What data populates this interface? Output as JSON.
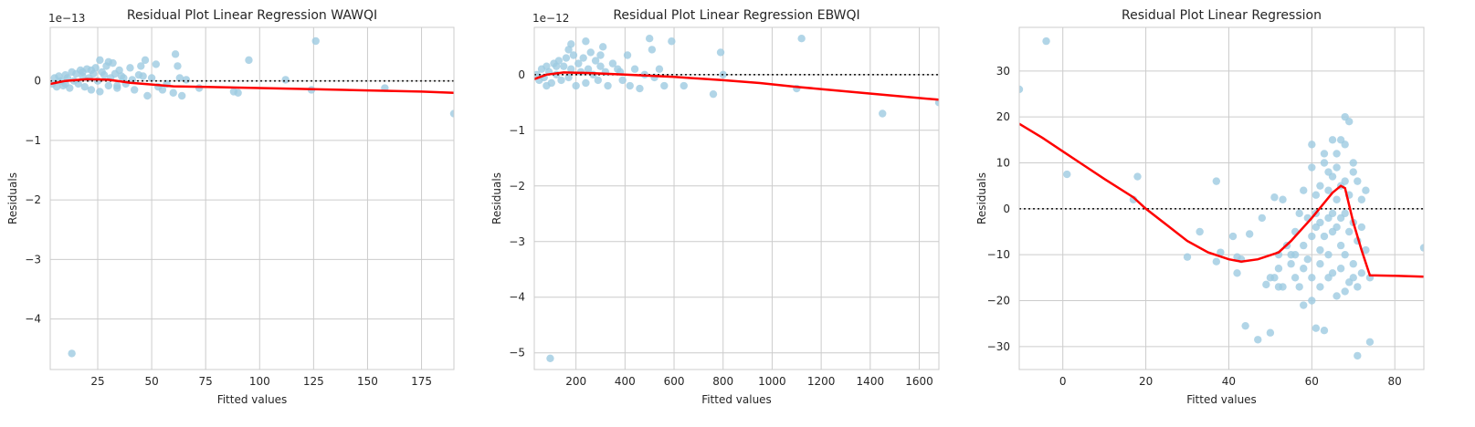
{
  "chart_data": [
    {
      "type": "scatter",
      "title": "Residual Plot Linear Regression WAWQI",
      "xlabel": "Fitted values",
      "ylabel": "Residuals",
      "offset_label": "1e−13",
      "xlim": [
        3,
        190
      ],
      "ylim": [
        -4.85,
        0.9
      ],
      "xticks": [
        25,
        50,
        75,
        100,
        125,
        150,
        175
      ],
      "yticks": [
        0,
        -1,
        -2,
        -3,
        -4
      ],
      "grid": true,
      "points": [
        [
          4,
          -0.05
        ],
        [
          5,
          0.05
        ],
        [
          6,
          -0.1
        ],
        [
          7,
          0.08
        ],
        [
          8,
          0.0
        ],
        [
          9,
          -0.08
        ],
        [
          10,
          0.1
        ],
        [
          11,
          0.05
        ],
        [
          12,
          -0.12
        ],
        [
          13,
          0.15
        ],
        [
          14,
          0.0
        ],
        [
          15,
          0.12
        ],
        [
          16,
          -0.05
        ],
        [
          17,
          0.18
        ],
        [
          18,
          0.08
        ],
        [
          19,
          -0.1
        ],
        [
          20,
          0.2
        ],
        [
          21,
          0.05
        ],
        [
          22,
          -0.15
        ],
        [
          23,
          0.12
        ],
        [
          24,
          0.22
        ],
        [
          25,
          0.0
        ],
        [
          26,
          -0.18
        ],
        [
          27,
          0.15
        ],
        [
          28,
          0.1
        ],
        [
          29,
          0.25
        ],
        [
          30,
          -0.08
        ],
        [
          31,
          0.05
        ],
        [
          32,
          0.3
        ],
        [
          33,
          0.12
        ],
        [
          34,
          -0.12
        ],
        [
          35,
          0.18
        ],
        [
          36,
          0.08
        ],
        [
          37,
          0.05
        ],
        [
          38,
          -0.05
        ],
        [
          40,
          0.22
        ],
        [
          41,
          0.02
        ],
        [
          42,
          -0.15
        ],
        [
          44,
          0.1
        ],
        [
          45,
          0.25
        ],
        [
          46,
          0.08
        ],
        [
          47,
          0.35
        ],
        [
          48,
          -0.25
        ],
        [
          50,
          0.05
        ],
        [
          52,
          0.28
        ],
        [
          53,
          -0.1
        ],
        [
          55,
          -0.15
        ],
        [
          57,
          -0.05
        ],
        [
          60,
          -0.2
        ],
        [
          61,
          0.45
        ],
        [
          62,
          0.25
        ],
        [
          63,
          0.05
        ],
        [
          64,
          -0.25
        ],
        [
          66,
          0.02
        ],
        [
          72,
          -0.12
        ],
        [
          88,
          -0.18
        ],
        [
          90,
          -0.2
        ],
        [
          95,
          0.35
        ],
        [
          112,
          0.02
        ],
        [
          124,
          -0.15
        ],
        [
          126,
          0.67
        ],
        [
          158,
          -0.12
        ],
        [
          190,
          -0.55
        ],
        [
          13,
          -4.58
        ],
        [
          26,
          0.35
        ],
        [
          30,
          0.32
        ],
        [
          22,
          0.18
        ],
        [
          18,
          0.15
        ],
        [
          10,
          -0.05
        ],
        [
          34,
          -0.08
        ]
      ],
      "fit": [
        [
          3,
          -0.05
        ],
        [
          10,
          0.0
        ],
        [
          20,
          0.03
        ],
        [
          30,
          0.02
        ],
        [
          40,
          -0.03
        ],
        [
          50,
          -0.06
        ],
        [
          60,
          -0.09
        ],
        [
          75,
          -0.1
        ],
        [
          100,
          -0.12
        ],
        [
          125,
          -0.14
        ],
        [
          150,
          -0.16
        ],
        [
          175,
          -0.18
        ],
        [
          190,
          -0.2
        ]
      ]
    },
    {
      "type": "scatter",
      "title": "Residual Plot Linear Regression EBWQI",
      "xlabel": "Fitted values",
      "ylabel": "Residuals",
      "offset_label": "1e−12",
      "xlim": [
        30,
        1680
      ],
      "ylim": [
        -5.3,
        0.85
      ],
      "xticks": [
        200,
        400,
        600,
        800,
        1000,
        1200,
        1400,
        1600
      ],
      "yticks": [
        0,
        -1,
        -2,
        -3,
        -4,
        -5
      ],
      "grid": true,
      "points": [
        [
          40,
          0.0
        ],
        [
          50,
          -0.1
        ],
        [
          60,
          0.1
        ],
        [
          70,
          -0.05
        ],
        [
          80,
          0.15
        ],
        [
          90,
          0.05
        ],
        [
          100,
          -0.15
        ],
        [
          110,
          0.2
        ],
        [
          120,
          0.0
        ],
        [
          130,
          0.25
        ],
        [
          140,
          -0.1
        ],
        [
          150,
          0.15
        ],
        [
          160,
          0.3
        ],
        [
          170,
          -0.05
        ],
        [
          180,
          0.1
        ],
        [
          190,
          0.35
        ],
        [
          200,
          -0.2
        ],
        [
          210,
          0.2
        ],
        [
          220,
          0.05
        ],
        [
          230,
          0.3
        ],
        [
          240,
          -0.15
        ],
        [
          250,
          0.1
        ],
        [
          260,
          0.4
        ],
        [
          270,
          0.0
        ],
        [
          280,
          0.25
        ],
        [
          290,
          -0.1
        ],
        [
          300,
          0.15
        ],
        [
          310,
          0.5
        ],
        [
          320,
          0.05
        ],
        [
          330,
          -0.2
        ],
        [
          350,
          0.2
        ],
        [
          370,
          0.1
        ],
        [
          390,
          -0.1
        ],
        [
          410,
          0.35
        ],
        [
          420,
          -0.2
        ],
        [
          440,
          0.1
        ],
        [
          460,
          -0.25
        ],
        [
          480,
          0.0
        ],
        [
          500,
          0.65
        ],
        [
          510,
          0.45
        ],
        [
          520,
          -0.05
        ],
        [
          540,
          0.1
        ],
        [
          560,
          -0.2
        ],
        [
          590,
          0.6
        ],
        [
          640,
          -0.2
        ],
        [
          760,
          -0.35
        ],
        [
          790,
          0.4
        ],
        [
          800,
          0.0
        ],
        [
          1100,
          -0.25
        ],
        [
          1120,
          0.65
        ],
        [
          1450,
          -0.7
        ],
        [
          1680,
          -0.5
        ],
        [
          95,
          -5.1
        ],
        [
          180,
          0.55
        ],
        [
          240,
          0.6
        ],
        [
          170,
          0.45
        ],
        [
          300,
          0.35
        ],
        [
          120,
          0.15
        ],
        [
          80,
          -0.2
        ],
        [
          380,
          0.05
        ]
      ],
      "fit": [
        [
          30,
          -0.08
        ],
        [
          80,
          0.0
        ],
        [
          150,
          0.04
        ],
        [
          250,
          0.03
        ],
        [
          400,
          0.0
        ],
        [
          600,
          -0.04
        ],
        [
          800,
          -0.1
        ],
        [
          950,
          -0.15
        ],
        [
          1100,
          -0.22
        ],
        [
          1300,
          -0.3
        ],
        [
          1500,
          -0.38
        ],
        [
          1680,
          -0.45
        ]
      ]
    },
    {
      "type": "scatter",
      "title": "Residual Plot Linear Regression",
      "xlabel": "Fitted values",
      "ylabel": "Residuals",
      "offset_label": "",
      "xlim": [
        -10.5,
        87
      ],
      "ylim": [
        -35,
        39.5
      ],
      "xticks": [
        0,
        20,
        40,
        60,
        80
      ],
      "yticks": [
        30,
        20,
        10,
        0,
        -10,
        -20,
        -30
      ],
      "grid": true,
      "points": [
        [
          -10.5,
          26
        ],
        [
          -4,
          36.5
        ],
        [
          1,
          7.5
        ],
        [
          17,
          2
        ],
        [
          18,
          7
        ],
        [
          30,
          -10.5
        ],
        [
          33,
          -5
        ],
        [
          37,
          6
        ],
        [
          37,
          -11.5
        ],
        [
          38,
          -9.5
        ],
        [
          41,
          -6
        ],
        [
          42,
          -10.5
        ],
        [
          42,
          -14
        ],
        [
          43,
          -11
        ],
        [
          44,
          -25.5
        ],
        [
          45,
          -5.5
        ],
        [
          47,
          -28.5
        ],
        [
          48,
          -2
        ],
        [
          49,
          -16.5
        ],
        [
          50,
          -15
        ],
        [
          50,
          -27
        ],
        [
          51,
          -15
        ],
        [
          51,
          2.5
        ],
        [
          52,
          -13
        ],
        [
          52,
          -17
        ],
        [
          52,
          -10
        ],
        [
          53,
          -17
        ],
        [
          53,
          2
        ],
        [
          54,
          -8
        ],
        [
          55,
          -10
        ],
        [
          55,
          -12
        ],
        [
          56,
          -15
        ],
        [
          56,
          -5
        ],
        [
          57,
          -1
        ],
        [
          57,
          -17
        ],
        [
          58,
          4
        ],
        [
          58,
          -8
        ],
        [
          58,
          -13
        ],
        [
          59,
          -2
        ],
        [
          59,
          -11
        ],
        [
          60,
          -6
        ],
        [
          60,
          9
        ],
        [
          60,
          14
        ],
        [
          60,
          -15
        ],
        [
          61,
          3
        ],
        [
          61,
          -1
        ],
        [
          61,
          -4
        ],
        [
          61,
          -26
        ],
        [
          62,
          5
        ],
        [
          62,
          -9
        ],
        [
          62,
          -12
        ],
        [
          62,
          -17
        ],
        [
          63,
          10
        ],
        [
          63,
          -6
        ],
        [
          63,
          -26.5
        ],
        [
          64,
          4
        ],
        [
          64,
          -2
        ],
        [
          64,
          -10
        ],
        [
          64,
          -15
        ],
        [
          65,
          7
        ],
        [
          65,
          15
        ],
        [
          65,
          -1
        ],
        [
          65,
          -5
        ],
        [
          65,
          -14
        ],
        [
          66,
          9
        ],
        [
          66,
          -4
        ],
        [
          66,
          12
        ],
        [
          66,
          -19
        ],
        [
          67,
          5
        ],
        [
          67,
          -2
        ],
        [
          67,
          -8
        ],
        [
          67,
          -13
        ],
        [
          68,
          20
        ],
        [
          68,
          14
        ],
        [
          68,
          -1
        ],
        [
          68,
          6
        ],
        [
          68,
          -10
        ],
        [
          69,
          3
        ],
        [
          69,
          -5
        ],
        [
          69,
          -16
        ],
        [
          69,
          19
        ],
        [
          70,
          8
        ],
        [
          70,
          -3
        ],
        [
          70,
          10
        ],
        [
          70,
          -12
        ],
        [
          71,
          6
        ],
        [
          71,
          -7
        ],
        [
          71,
          -17
        ],
        [
          71,
          -32
        ],
        [
          72,
          2
        ],
        [
          72,
          -4
        ],
        [
          72,
          -14
        ],
        [
          73,
          4
        ],
        [
          73,
          -9
        ],
        [
          74,
          -15
        ],
        [
          74,
          -29
        ],
        [
          63,
          12
        ],
        [
          66,
          2
        ],
        [
          68,
          -18
        ],
        [
          64,
          8
        ],
        [
          62,
          -3
        ],
        [
          60,
          -20
        ],
        [
          67,
          15
        ],
        [
          70,
          -15
        ],
        [
          58,
          -21
        ],
        [
          56,
          -10
        ],
        [
          87,
          -8.5
        ]
      ],
      "fit": [
        [
          -10.5,
          18.5
        ],
        [
          -5,
          15.5
        ],
        [
          0,
          12.5
        ],
        [
          5,
          9.5
        ],
        [
          10,
          6.5
        ],
        [
          17,
          2.5
        ],
        [
          20,
          0
        ],
        [
          25,
          -3.5
        ],
        [
          30,
          -7
        ],
        [
          35,
          -9.5
        ],
        [
          40,
          -11
        ],
        [
          43,
          -11.5
        ],
        [
          47,
          -11
        ],
        [
          52,
          -9.5
        ],
        [
          55,
          -7
        ],
        [
          60,
          -2
        ],
        [
          65,
          3.5
        ],
        [
          67,
          5
        ],
        [
          68,
          4.5
        ],
        [
          70,
          -3
        ],
        [
          72,
          -9
        ],
        [
          74,
          -14.5
        ],
        [
          80,
          -14.6
        ],
        [
          87,
          -14.8
        ]
      ]
    }
  ]
}
